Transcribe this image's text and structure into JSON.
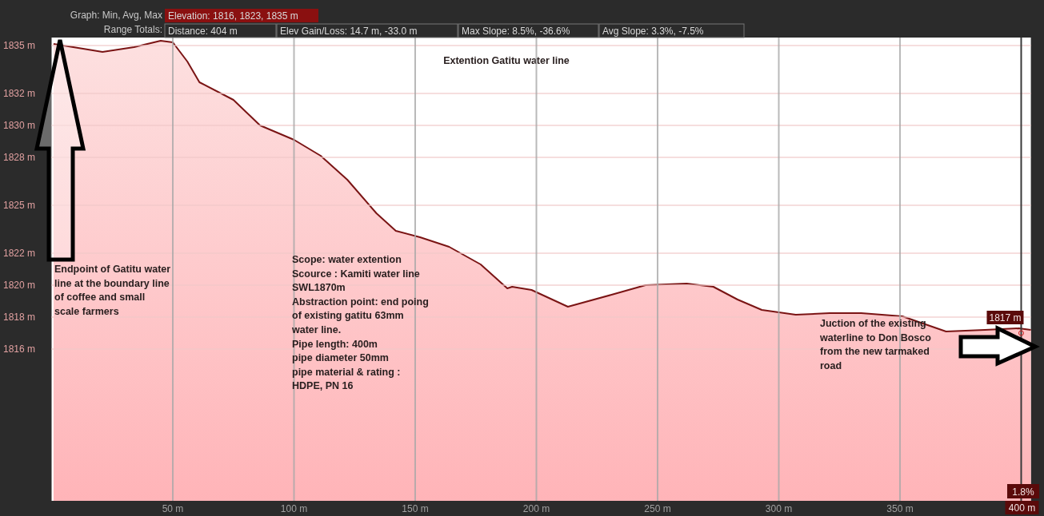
{
  "chart_data": {
    "type": "area",
    "title": "Extention Gatitu water line",
    "x": [
      0.8,
      13,
      21,
      34,
      45,
      50,
      56,
      61,
      75,
      86,
      100,
      111,
      122,
      134,
      142,
      152,
      164,
      177,
      188,
      190,
      198,
      213,
      231,
      245,
      262,
      273,
      283,
      293,
      307,
      321,
      334,
      351,
      369,
      385,
      399,
      404
    ],
    "series": [
      {
        "color": "#7a1414",
        "values": [
          1835.1,
          1834.8,
          1834.6,
          1834.9,
          1835.3,
          1835.2,
          1834.0,
          1832.7,
          1831.6,
          1830.0,
          1829.1,
          1828.1,
          1826.6,
          1824.5,
          1823.4,
          1823.0,
          1822.4,
          1821.3,
          1819.8,
          1819.9,
          1819.7,
          1818.65,
          1819.4,
          1820.0,
          1820.1,
          1819.9,
          1819.1,
          1818.45,
          1818.15,
          1818.25,
          1818.25,
          1818.05,
          1817.1,
          1817.2,
          1817.3,
          1817.2
        ]
      }
    ],
    "xlim": [
      0,
      404
    ],
    "ylim": [
      1806.5,
      1835.5
    ],
    "xticks": [
      {
        "value": 50,
        "label": "50 m"
      },
      {
        "value": 100,
        "label": "100 m"
      },
      {
        "value": 150,
        "label": "150 m"
      },
      {
        "value": 200,
        "label": "200 m"
      },
      {
        "value": 250,
        "label": "250 m"
      },
      {
        "value": 300,
        "label": "300 m"
      },
      {
        "value": 350,
        "label": "350 m"
      }
    ],
    "yticks": [
      {
        "value": 1835,
        "label": "1835 m"
      },
      {
        "value": 1832,
        "label": "1832 m"
      },
      {
        "value": 1830,
        "label": "1830 m"
      },
      {
        "value": 1828,
        "label": "1828 m"
      },
      {
        "value": 1825,
        "label": "1825 m"
      },
      {
        "value": 1822,
        "label": "1822 m"
      },
      {
        "value": 1820,
        "label": "1820 m"
      },
      {
        "value": 1818,
        "label": "1818 m"
      },
      {
        "value": 1816,
        "label": "1816 m"
      }
    ],
    "grid": true,
    "ref_lines": [
      {
        "axis": "x",
        "value": 400,
        "label": "400 m",
        "color": "#3a3a3a"
      }
    ],
    "annotations": [
      "Graph: Min, Avg, Max",
      "Elevation: 1816, 1823, 1835 m",
      "Range Totals:",
      "Distance: 404 m",
      "Elev Gain/Loss: 14.7 m, -33.0 m",
      "Max Slope: 8.5%, -36.6%",
      "Avg Slope: 3.3%, -7.5%",
      "Endpoint of Gatitu water\nline at the boundary line\nof coffee and small\nscale farmers",
      "Scope: water extention\nScource : Kamiti water line\nSWL1870m\nAbstraction point: end poing\nof existing gatitu 63mm\nwater line.\nPipe length: 400m\npipe diameter 50mm\npipe material & rating :\nHDPE, PN 16",
      "Juction of the existing\nwaterline to Don Bosco\nfrom the new tarmaked\nroad",
      {
        "text": "1817 m",
        "x": 400,
        "y": 1817
      },
      "1.8%"
    ]
  }
}
